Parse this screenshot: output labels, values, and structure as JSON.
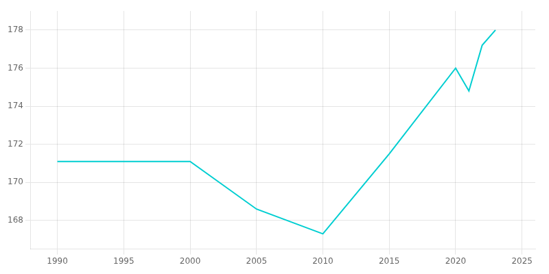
{
  "chart_data": {
    "type": "line",
    "x": [
      1990,
      1995,
      2000,
      2005,
      2010,
      2015,
      2020,
      2021,
      2022,
      2023
    ],
    "values": [
      171.1,
      171.1,
      171.1,
      168.6,
      167.3,
      171.5,
      176.0,
      174.8,
      177.2,
      178.0
    ],
    "color": "#00CED1",
    "xlim": [
      1988,
      2026
    ],
    "ylim": [
      166.5,
      179.0
    ],
    "xticks": [
      1990,
      1995,
      2000,
      2005,
      2010,
      2015,
      2020,
      2025
    ],
    "yticks": [
      168,
      170,
      172,
      174,
      176,
      178
    ],
    "grid": true
  }
}
